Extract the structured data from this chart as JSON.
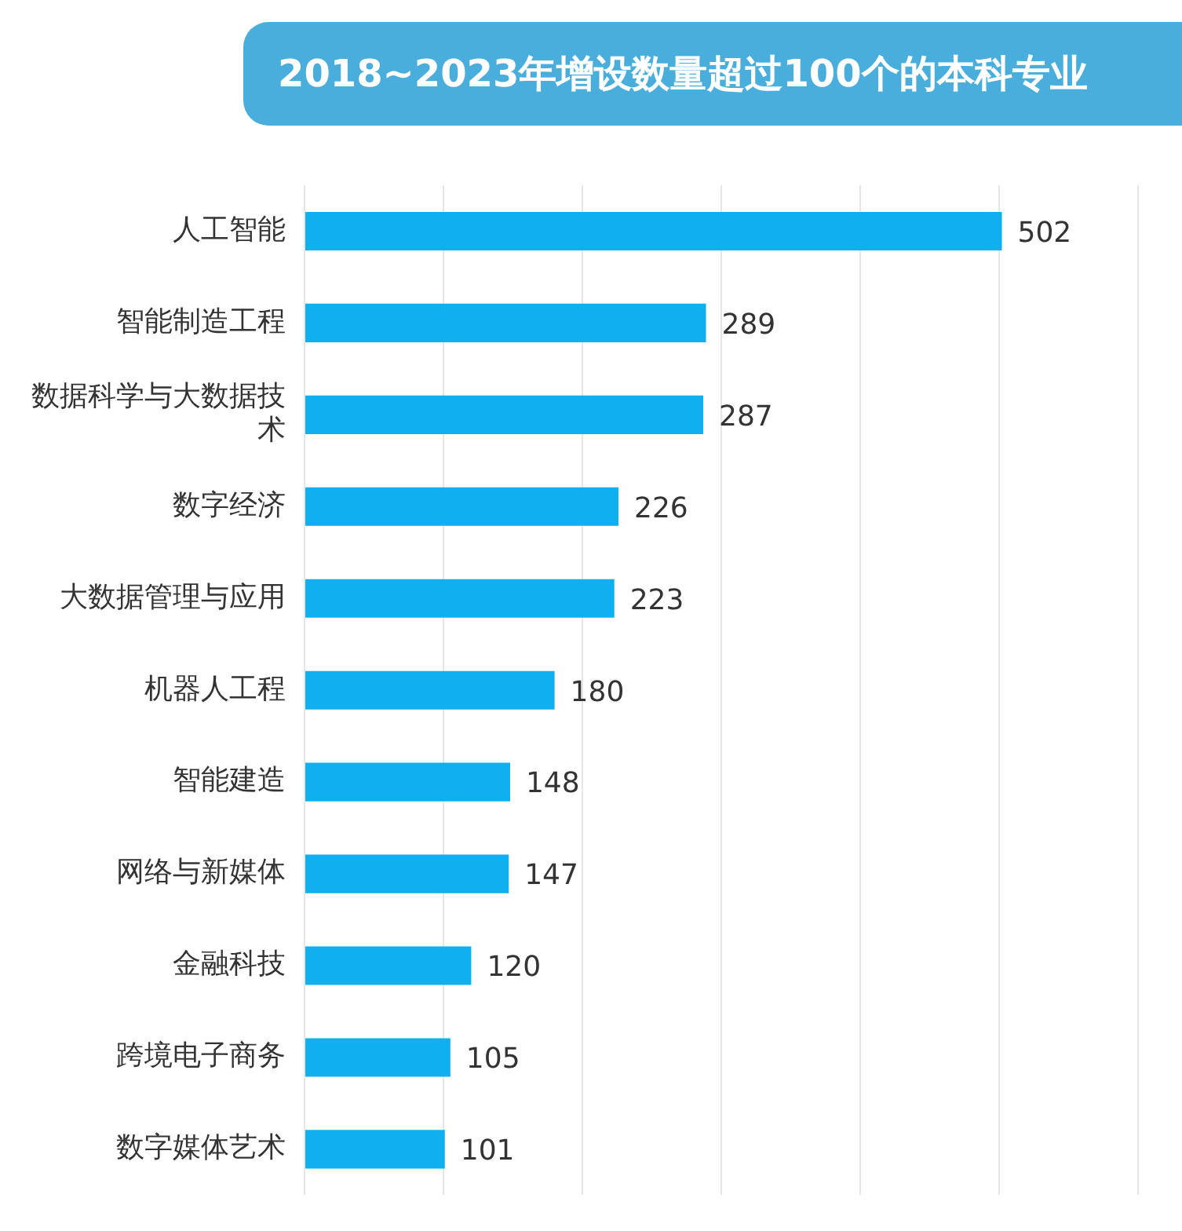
{
  "chart_data": {
    "type": "bar",
    "orientation": "horizontal",
    "title": "2018~2023年增设数量超过100个的本科专业",
    "categories": [
      "人工智能",
      "智能制造工程",
      "数据科学与大数据技术",
      "数字经济",
      "大数据管理与应用",
      "机器人工程",
      "智能建造",
      "网络与新媒体",
      "金融科技",
      "跨境电子商务",
      "数字媒体艺术"
    ],
    "values": [
      502,
      289,
      287,
      226,
      223,
      180,
      148,
      147,
      120,
      105,
      101
    ],
    "color": "#10b0f0",
    "xlim": [
      0,
      600
    ],
    "xticks": [
      {
        "value": 0,
        "label": null
      },
      {
        "value": 100,
        "label": null
      },
      {
        "value": 200,
        "label": null
      },
      {
        "value": 300,
        "label": null
      },
      {
        "value": 400,
        "label": null
      },
      {
        "value": 500,
        "label": null
      },
      {
        "value": 600,
        "label": null
      }
    ],
    "grid": "x",
    "data_labels": true,
    "legend": false
  }
}
